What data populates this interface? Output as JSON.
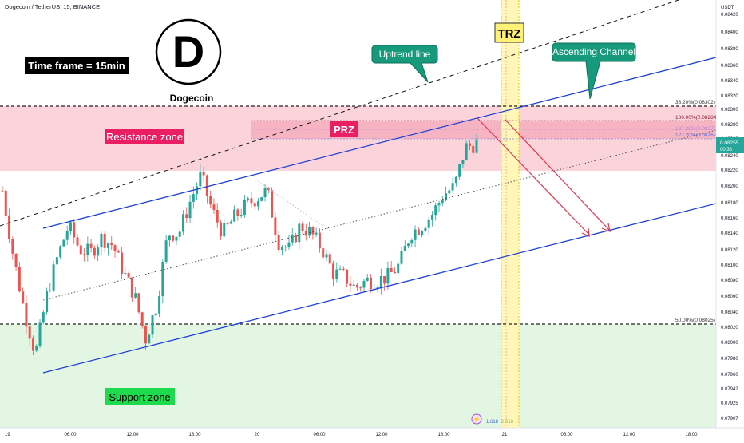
{
  "header": {
    "symbol_line": "Dogecoin / TetherUS, 15, BINANCE",
    "currency": "USDT"
  },
  "annotations": {
    "timeframe": "Time frame = 15min",
    "logo_letter": "D",
    "logo_name": "Dogecoin",
    "uptrend_line": "Uptrend line",
    "ascending_channel": "Ascending Channel",
    "trz": "TRZ",
    "prz": "PRZ",
    "resistance_zone": "Resistance zone",
    "support_zone": "Support zone"
  },
  "fib_labels": {
    "f382": "38.20%(0.08302)",
    "f100": "100.00%(0.08284)",
    "f127a": "127.20%(0.08279)",
    "f127b": "127.20%(0.08262)",
    "f50": "50.00%(0.08025)"
  },
  "bottom_tags": {
    "a": "1.618",
    "b": "2.618"
  },
  "last_price": {
    "price": "0.08255",
    "countdown": "00:38"
  },
  "colors": {
    "up": "#26a69a",
    "down": "#ef5350",
    "channel": "#1d3fd6",
    "resistance_fill": "#f8c8cf",
    "prz_fill": "#f2a5b4",
    "support_fill": "#dff5e0",
    "callout": "#169a7b",
    "resistance_label": "#e91e63",
    "support_label": "#1bd24a",
    "trz_band": "#fff3a0",
    "target_arrow": "#e8334a"
  },
  "chart_data": {
    "type": "candlestick",
    "y_unit": "USDT",
    "y_ticks": [
      "0.08420",
      "0.08400",
      "0.08380",
      "0.08360",
      "0.08340",
      "0.08320",
      "0.08300",
      "0.08280",
      "0.08260",
      "0.08240",
      "0.08220",
      "0.08200",
      "0.08180",
      "0.08160",
      "0.08140",
      "0.08120",
      "0.08100",
      "0.08080",
      "0.08060",
      "0.08040",
      "0.08020",
      "0.08000",
      "0.07980",
      "0.07960",
      "0.07942",
      "0.07925",
      "0.07907"
    ],
    "x_ticks": [
      "19",
      "06:00",
      "12:00",
      "18:00",
      "20",
      "06:00",
      "12:00",
      "18:00",
      "21",
      "06:00",
      "12:00",
      "18:00"
    ],
    "price_levels": [
      0.08302,
      0.08284,
      0.08279,
      0.08262,
      0.08025
    ],
    "candles_close_sample": [
      0.08195,
      0.0811,
      0.0804,
      0.07985,
      0.0806,
      0.0811,
      0.0815,
      0.0812,
      0.08115,
      0.08135,
      0.08125,
      0.0809,
      0.0806,
      0.08005,
      0.0805,
      0.0814,
      0.0814,
      0.0818,
      0.08215,
      0.0817,
      0.0814,
      0.0816,
      0.08175,
      0.08185,
      0.08195,
      0.0813,
      0.0812,
      0.0815,
      0.0814,
      0.0812,
      0.0809,
      0.08085,
      0.0807,
      0.0808,
      0.0808,
      0.08085,
      0.081,
      0.0814,
      0.0815,
      0.08165,
      0.0819,
      0.082,
      0.0825,
      0.08255
    ]
  }
}
